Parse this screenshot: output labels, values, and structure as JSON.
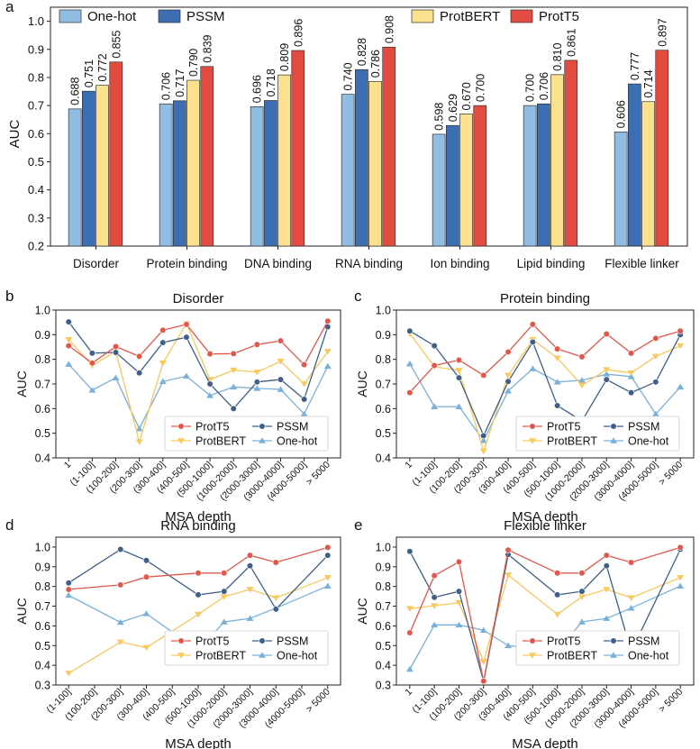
{
  "colors": {
    "One-hot": "#91bde3",
    "PSSM": "#3d6eb1",
    "ProtBERT": "#fbe08d",
    "ProtT5": "#e34a40",
    "line_ProtT5": "#e0574c",
    "line_ProtBERT": "#f7c95e",
    "line_PSSM": "#3f5f86",
    "line_One-hot": "#7ab1da"
  },
  "chart_data": [
    {
      "panel": "a",
      "type": "bar",
      "title": "",
      "xlabel": "",
      "ylabel": "AUC",
      "ylim": [
        0.2,
        1.05
      ],
      "yticks": [
        "0.2",
        "0.3",
        "0.4",
        "0.5",
        "0.6",
        "0.7",
        "0.8",
        "0.9",
        "1.0"
      ],
      "categories": [
        "Disorder",
        "Protein binding",
        "DNA binding",
        "RNA binding",
        "Ion binding",
        "Lipid binding",
        "Flexible linker"
      ],
      "legend": [
        "One-hot",
        "PSSM",
        "ProtBERT",
        "ProtT5"
      ],
      "series": [
        {
          "name": "One-hot",
          "values": [
            0.688,
            0.706,
            0.696,
            0.74,
            0.598,
            0.7,
            0.606
          ],
          "labels": [
            "0.688",
            "0.706",
            "0.696",
            "0.740",
            "0.598",
            "0.700",
            "0.606"
          ]
        },
        {
          "name": "PSSM",
          "values": [
            0.751,
            0.717,
            0.718,
            0.828,
            0.629,
            0.706,
            0.777
          ],
          "labels": [
            "0.751",
            "0.717",
            "0.718",
            "0.828",
            "0.629",
            "0.706",
            "0.777"
          ]
        },
        {
          "name": "ProtBERT",
          "values": [
            0.772,
            0.79,
            0.809,
            0.786,
            0.67,
            0.81,
            0.714
          ],
          "labels": [
            "0.772",
            "0.790",
            "0.809",
            "0.786",
            "0.670",
            "0.810",
            "0.714"
          ]
        },
        {
          "name": "ProtT5",
          "values": [
            0.855,
            0.839,
            0.896,
            0.908,
            0.7,
            0.861,
            0.897
          ],
          "labels": [
            "0.855",
            "0.839",
            "0.896",
            "0.908",
            "0.700",
            "0.861",
            "0.897"
          ]
        }
      ]
    },
    {
      "panel": "b",
      "type": "line",
      "title": "Disorder",
      "xlabel": "MSA depth",
      "ylabel": "AUC",
      "ylim": [
        0.4,
        1.0
      ],
      "yticks": [
        "0.4",
        "0.5",
        "0.6",
        "0.7",
        "0.8",
        "0.9",
        "1.0"
      ],
      "categories": [
        "1",
        "(1-100]",
        "(100-200]",
        "(200-300]",
        "(300-400]",
        "(400-500]",
        "(500-1000]",
        "(1000-2000]",
        "(2000-3000]",
        "(3000-4000]",
        "(4000-5000]",
        "> 5000"
      ],
      "series": [
        {
          "name": "ProtT5",
          "values": [
            0.855,
            0.785,
            0.852,
            0.812,
            0.918,
            0.942,
            0.822,
            0.823,
            0.86,
            0.875,
            0.778,
            0.955
          ]
        },
        {
          "name": "ProtBERT",
          "values": [
            0.88,
            0.775,
            0.832,
            0.465,
            0.785,
            0.945,
            0.718,
            0.756,
            0.748,
            0.792,
            0.7,
            0.832
          ]
        },
        {
          "name": "PSSM",
          "values": [
            0.952,
            0.825,
            0.828,
            0.745,
            0.868,
            0.89,
            0.7,
            0.6,
            0.708,
            0.718,
            0.638,
            0.932
          ]
        },
        {
          "name": "One-hot",
          "values": [
            0.78,
            0.675,
            0.725,
            0.518,
            0.71,
            0.732,
            0.653,
            0.688,
            0.682,
            0.678,
            0.578,
            0.772
          ]
        }
      ]
    },
    {
      "panel": "c",
      "type": "line",
      "title": "Protein binding",
      "xlabel": "MSA depth",
      "ylabel": "AUC",
      "ylim": [
        0.4,
        1.0
      ],
      "yticks": [
        "0.4",
        "0.5",
        "0.6",
        "0.7",
        "0.8",
        "0.9",
        "1.0"
      ],
      "categories": [
        "1",
        "(1-100]",
        "(100-200]",
        "(200-300]",
        "(300-400]",
        "(400-500]",
        "(500-1000]",
        "(1000-2000]",
        "(2000-3000]",
        "(3000-4000]",
        "(4000-5000]",
        "> 5000"
      ],
      "series": [
        {
          "name": "ProtT5",
          "values": [
            0.665,
            0.775,
            0.797,
            0.735,
            0.83,
            0.942,
            0.842,
            0.81,
            0.903,
            0.825,
            0.885,
            0.915
          ]
        },
        {
          "name": "ProtBERT",
          "values": [
            0.905,
            0.77,
            0.755,
            0.428,
            0.735,
            0.88,
            0.805,
            0.695,
            0.758,
            0.745,
            0.812,
            0.855
          ]
        },
        {
          "name": "PSSM",
          "values": [
            0.915,
            0.855,
            0.725,
            0.49,
            0.71,
            0.87,
            0.612,
            0.55,
            0.718,
            0.665,
            0.708,
            0.9
          ]
        },
        {
          "name": "One-hot",
          "values": [
            0.782,
            0.608,
            0.608,
            0.47,
            0.672,
            0.762,
            0.708,
            0.715,
            0.74,
            0.73,
            0.578,
            0.688
          ]
        }
      ]
    },
    {
      "panel": "d",
      "type": "line",
      "title": "RNA binding",
      "xlabel": "MSA depth",
      "ylabel": "AUC",
      "ylim": [
        0.3,
        1.05
      ],
      "yticks": [
        "0.3",
        "0.4",
        "0.5",
        "0.6",
        "0.7",
        "0.8",
        "0.9",
        "1.0"
      ],
      "categories": [
        "(1-100]",
        "(100-200]",
        "(200-300]",
        "(300-400]",
        "(400-500]",
        "(500-1000]",
        "(1000-2000]",
        "(2000-3000]",
        "(3000-4000]",
        "(4000-5000]",
        "> 5000"
      ],
      "series": [
        {
          "name": "ProtT5",
          "values": [
            0.785,
            null,
            0.808,
            0.848,
            null,
            0.868,
            0.868,
            0.958,
            0.922,
            null,
            0.998
          ]
        },
        {
          "name": "ProtBERT",
          "values": [
            0.36,
            null,
            0.518,
            0.49,
            null,
            0.658,
            0.748,
            0.785,
            0.742,
            null,
            0.845
          ]
        },
        {
          "name": "PSSM",
          "values": [
            0.818,
            null,
            0.988,
            0.932,
            null,
            0.758,
            0.775,
            0.905,
            0.685,
            null,
            0.958
          ]
        },
        {
          "name": "One-hot",
          "values": [
            0.755,
            null,
            0.618,
            0.662,
            null,
            0.475,
            0.62,
            0.638,
            0.69,
            null,
            0.802
          ]
        }
      ]
    },
    {
      "panel": "e",
      "type": "line",
      "title": "Flexible linker",
      "xlabel": "MSA depth",
      "ylabel": "AUC",
      "ylim": [
        0.3,
        1.05
      ],
      "yticks": [
        "0.3",
        "0.4",
        "0.5",
        "0.6",
        "0.7",
        "0.8",
        "0.9",
        "1.0"
      ],
      "categories": [
        "1",
        "(1-100]",
        "(100-200]",
        "(200-300]",
        "(300-400]",
        "(400-500]",
        "(500-1000]",
        "(1000-2000]",
        "(2000-3000]",
        "(3000-4000]",
        "(4000-5000]",
        "> 5000"
      ],
      "series": [
        {
          "name": "ProtT5",
          "values": [
            0.565,
            0.855,
            0.925,
            0.32,
            0.985,
            null,
            0.868,
            0.868,
            0.958,
            0.922,
            null,
            0.998
          ]
        },
        {
          "name": "ProtBERT",
          "values": [
            0.688,
            0.702,
            0.718,
            0.42,
            0.858,
            null,
            0.658,
            0.748,
            0.785,
            0.742,
            null,
            0.845
          ]
        },
        {
          "name": "PSSM",
          "values": [
            0.978,
            0.745,
            0.775,
            0.318,
            0.962,
            null,
            0.758,
            0.775,
            0.905,
            0.47,
            null,
            0.988
          ]
        },
        {
          "name": "One-hot",
          "values": [
            0.38,
            0.605,
            0.605,
            0.578,
            0.5,
            null,
            0.475,
            0.62,
            0.638,
            0.69,
            null,
            0.802
          ]
        }
      ]
    }
  ]
}
